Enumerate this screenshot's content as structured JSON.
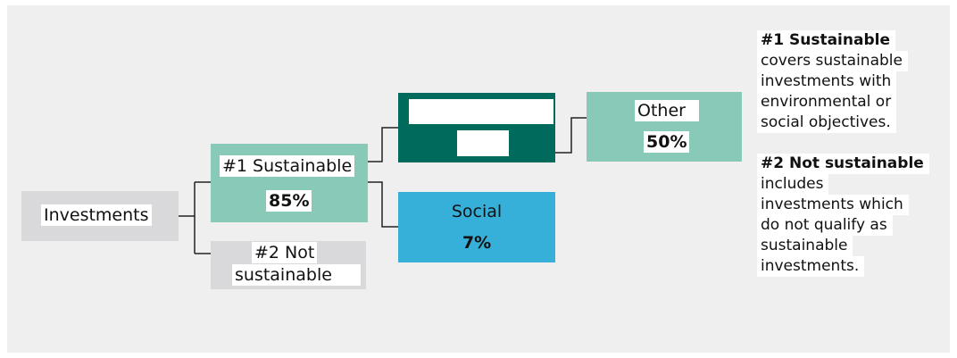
{
  "diagram": {
    "root": {
      "label": "Investments"
    },
    "sustainable": {
      "label": "#1 Sustainable",
      "percent": "85%"
    },
    "not_sustainable": {
      "label_line1": "#2 Not",
      "label_line2": "sustainable"
    },
    "environmental": {
      "label": "",
      "percent": ""
    },
    "other": {
      "label": "Other",
      "percent": "50%"
    },
    "social": {
      "label": "Social",
      "percent": "7%"
    }
  },
  "legend": {
    "sustainable": {
      "title": "#1 Sustainable",
      "lines": [
        "covers sustainable",
        "investments with",
        "environmental or",
        "social objectives."
      ]
    },
    "not_sustainable": {
      "title": "#2 Not sustainable",
      "lines": [
        "includes",
        "investments which",
        "do not qualify as",
        "sustainable",
        "investments."
      ]
    }
  },
  "colors": {
    "panel_background": "#efefef",
    "root_box": "#d9d9dc",
    "sustainable_box": "#88c9b7",
    "not_sustainable_box": "#d9d9dc",
    "environmental_box": "#006b5c",
    "other_box": "#88c9b7",
    "social_box": "#36b0d9",
    "connector": "#222222"
  }
}
